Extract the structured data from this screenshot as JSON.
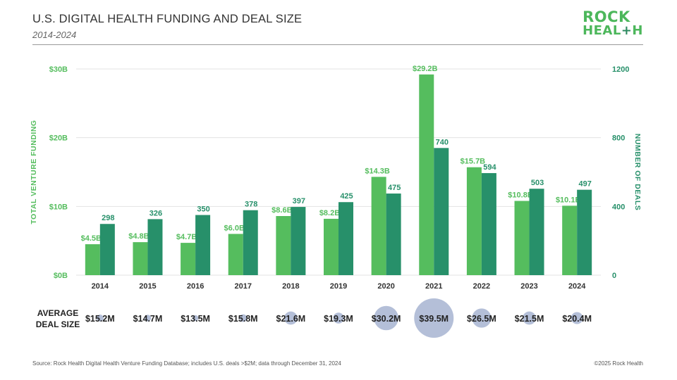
{
  "header": {
    "title": "U.S. DIGITAL HEALTH FUNDING AND DEAL SIZE",
    "subtitle": "2014-2024"
  },
  "logo": {
    "line1": "ROCK",
    "line2_start": "HEAL",
    "line2_plus": "+",
    "line2_end": "H"
  },
  "colors": {
    "funding": "#55bd5e",
    "deals": "#27906a",
    "bubble": "#b4bfd8",
    "grid": "#e3e3e3",
    "funding_axis_text": "#55bd5e",
    "deals_axis_text": "#27906a"
  },
  "chart_data": {
    "type": "bar",
    "title": "U.S. DIGITAL HEALTH FUNDING AND DEAL SIZE",
    "categories": [
      "2014",
      "2015",
      "2016",
      "2017",
      "2018",
      "2019",
      "2020",
      "2021",
      "2022",
      "2023",
      "2024"
    ],
    "series": [
      {
        "name": "Total Venture Funding",
        "axis": "left",
        "values": [
          4.5,
          4.8,
          4.7,
          6.0,
          8.6,
          8.2,
          14.3,
          29.2,
          15.7,
          10.8,
          10.1
        ],
        "labels": [
          "$4.5B",
          "$4.8B",
          "$4.7B",
          "$6.0B",
          "$8.6B",
          "$8.2B",
          "$14.3B",
          "$29.2B",
          "$15.7B",
          "$10.8B",
          "$10.1B"
        ]
      },
      {
        "name": "Number of Deals",
        "axis": "right",
        "values": [
          298,
          326,
          350,
          378,
          397,
          425,
          475,
          740,
          594,
          503,
          497
        ],
        "labels": [
          "298",
          "326",
          "350",
          "378",
          "397",
          "425",
          "475",
          "740",
          "594",
          "503",
          "497"
        ]
      }
    ],
    "avg_deal_size": {
      "label_line1": "AVERAGE",
      "label_line2": "DEAL SIZE",
      "values": [
        15.2,
        14.7,
        13.5,
        15.8,
        21.6,
        19.3,
        30.2,
        39.5,
        26.5,
        21.5,
        20.4
      ],
      "labels": [
        "$15.2M",
        "$14.7M",
        "$13.5M",
        "$15.8M",
        "$21.6M",
        "$19.3M",
        "$30.2M",
        "$39.5M",
        "$26.5M",
        "$21.5M",
        "$20.4M"
      ]
    },
    "ylabel": "TOTAL VENTURE FUNDING",
    "y2label": "NUMBER OF DEALS",
    "ylim": [
      0,
      30
    ],
    "y2lim": [
      0,
      1200
    ],
    "yticks": [
      0,
      10,
      20,
      30
    ],
    "ytick_labels": [
      "$0B",
      "$10B",
      "$20B",
      "$30B"
    ],
    "y2ticks": [
      0,
      400,
      800,
      1200
    ],
    "y2tick_labels": [
      "0",
      "400",
      "800",
      "1200"
    ],
    "grid": true
  },
  "footer": {
    "source": "Source: Rock Health Digital Health Venture Funding Database; includes U.S. deals >$2M; data through December 31, 2024",
    "copyright": "©2025 Rock Health"
  }
}
